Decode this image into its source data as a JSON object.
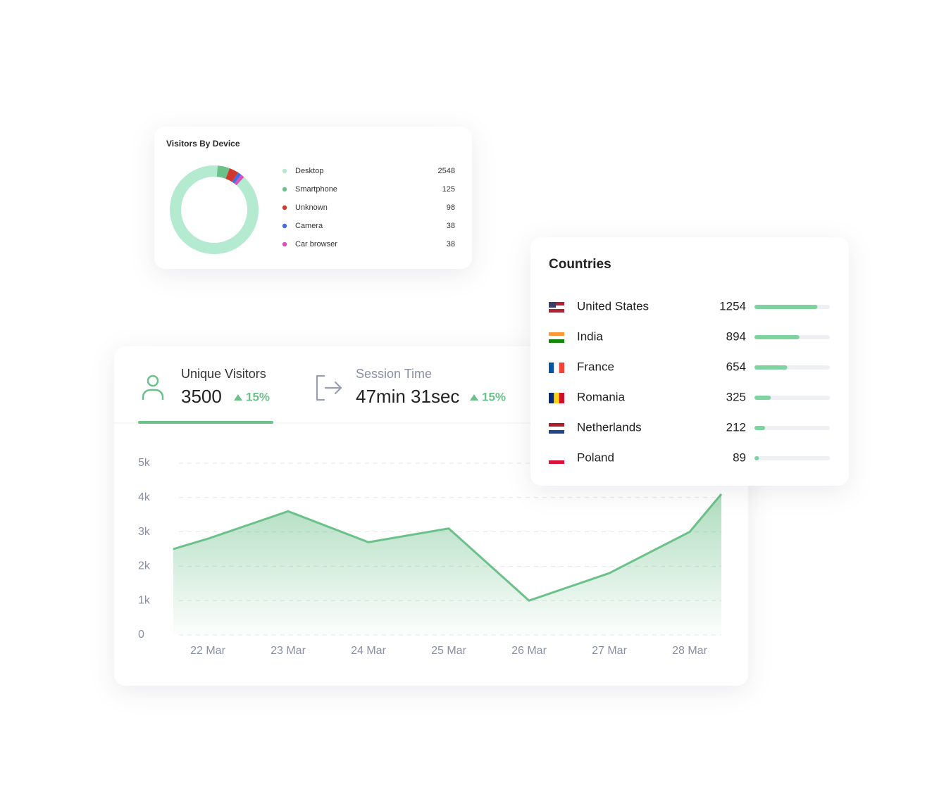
{
  "kpis": [
    {
      "label": "Unique Visitors",
      "value": 3500,
      "change": "15%"
    },
    {
      "label": "Session Time",
      "value": "47min 31sec",
      "change": "15%"
    }
  ],
  "chart_data": [
    {
      "type": "pie",
      "donut": true,
      "title": "Visitors By Device",
      "categories": [
        "Desktop",
        "Smartphone",
        "Unknown",
        "Camera",
        "Car browser"
      ],
      "values": [
        2548,
        125,
        98,
        38,
        38
      ],
      "colors": [
        "#b3ead0",
        "#6cc08a",
        "#d0382f",
        "#3f6fe0",
        "#dd4fbf"
      ]
    },
    {
      "type": "line",
      "fill": true,
      "grid": true,
      "color": "#6cc08a",
      "categories": [
        null,
        "22 Mar",
        "23 Mar",
        "24 Mar",
        "25 Mar",
        "26 Mar",
        "27 Mar",
        "28 Mar",
        null
      ],
      "values": [
        2500,
        2800,
        3600,
        2700,
        3100,
        1000,
        1800,
        3000,
        4100
      ],
      "ylim": [
        0,
        5000
      ],
      "yticks": [
        0,
        {
          "value": 1000,
          "label": "1k"
        },
        {
          "value": 2000,
          "label": "2k"
        },
        {
          "value": 3000,
          "label": "3k"
        },
        {
          "value": 4000,
          "label": "4k"
        },
        {
          "value": 5000,
          "label": "5k"
        }
      ]
    },
    {
      "type": "bar",
      "orientation": "horizontal",
      "title": "Countries",
      "color": "#7fd3a0",
      "categories": [
        "United States",
        "India",
        "France",
        "Romania",
        "Netherlands",
        "Poland"
      ],
      "values": [
        1254,
        894,
        654,
        325,
        212,
        89
      ],
      "xlim": [
        0,
        1500
      ]
    }
  ]
}
